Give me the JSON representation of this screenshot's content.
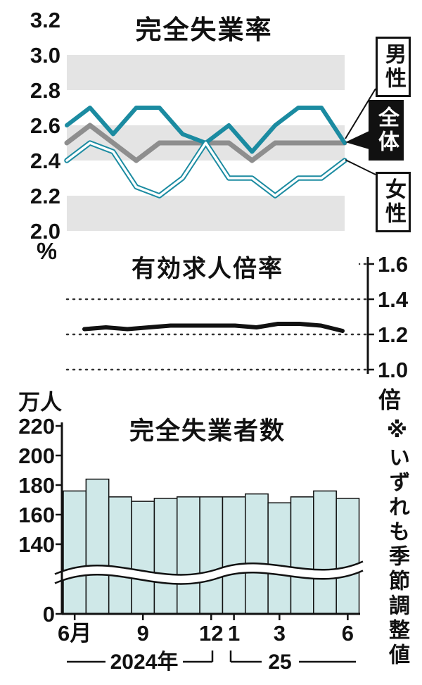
{
  "note": "※いずれも季節調整値",
  "chart_data": [
    {
      "type": "line",
      "title": "完全失業率",
      "ylabel": "%",
      "ylim": [
        2.0,
        3.2
      ],
      "yticks": [
        3.2,
        3.0,
        2.8,
        2.6,
        2.4,
        2.2,
        2.0
      ],
      "x": [
        "2024-06",
        "2024-07",
        "2024-08",
        "2024-09",
        "2024-10",
        "2024-11",
        "2024-12",
        "2025-01",
        "2025-02",
        "2025-03",
        "2025-04",
        "2025-05",
        "2025-06"
      ],
      "bands": [
        [
          2.8,
          3.0
        ],
        [
          2.4,
          2.6
        ],
        [
          2.0,
          2.2
        ]
      ],
      "band_color": "#e4e4e4",
      "series": [
        {
          "name": "男性",
          "color": "#1b8ba1",
          "style": "solid",
          "values": [
            2.6,
            2.7,
            2.55,
            2.7,
            2.7,
            2.55,
            2.5,
            2.6,
            2.45,
            2.6,
            2.7,
            2.7,
            2.5
          ]
        },
        {
          "name": "全体",
          "color": "#8e8e8e",
          "style": "thick",
          "values": [
            2.5,
            2.6,
            2.5,
            2.4,
            2.5,
            2.5,
            2.5,
            2.5,
            2.4,
            2.5,
            2.5,
            2.5,
            2.5
          ]
        },
        {
          "name": "女性",
          "color": "#1b8ba1",
          "style": "double",
          "values": [
            2.4,
            2.5,
            2.45,
            2.25,
            2.2,
            2.3,
            2.5,
            2.3,
            2.3,
            2.2,
            2.3,
            2.3,
            2.4
          ]
        }
      ]
    },
    {
      "type": "line",
      "title": "有効求人倍率",
      "ylabel": "倍",
      "ylim": [
        1.0,
        1.6
      ],
      "yticks": [
        1.6,
        1.4,
        1.2,
        1.0
      ],
      "grid": "dotted",
      "axis_side": "right",
      "series": [
        {
          "name": "有効求人倍率",
          "color": "#111111",
          "values": [
            1.23,
            1.24,
            1.23,
            1.24,
            1.25,
            1.25,
            1.25,
            1.25,
            1.24,
            1.26,
            1.26,
            1.25,
            1.22
          ]
        }
      ]
    },
    {
      "type": "bar",
      "title": "完全失業者数",
      "ylabel": "万人",
      "ylim": [
        0,
        220
      ],
      "yticks": [
        220,
        200,
        180,
        160,
        140,
        0
      ],
      "axis_break": true,
      "bar_color": "#cfe8e8",
      "values": [
        176,
        184,
        172,
        169,
        171,
        172,
        172,
        172,
        174,
        168,
        172,
        176,
        171
      ],
      "xtick_labels": [
        "6月",
        "9",
        "12",
        "1",
        "3",
        "6"
      ],
      "xtick_positions": [
        0,
        3,
        6,
        7,
        9,
        12
      ],
      "period_labels": [
        "2024年",
        "25"
      ]
    }
  ]
}
